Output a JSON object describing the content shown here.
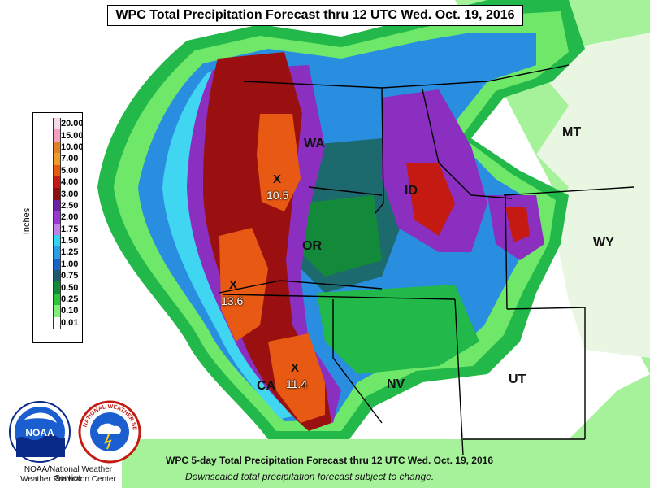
{
  "title": "WPC Total Precipitation Forecast thru 12 UTC Wed. Oct. 19, 2016",
  "states": [
    {
      "id": "wa",
      "label": "WA"
    },
    {
      "id": "or",
      "label": "OR"
    },
    {
      "id": "id",
      "label": "ID"
    },
    {
      "id": "mt",
      "label": "MT"
    },
    {
      "id": "wy",
      "label": "WY"
    },
    {
      "id": "ca",
      "label": "CA"
    },
    {
      "id": "nv",
      "label": "NV"
    },
    {
      "id": "ut",
      "label": "UT"
    }
  ],
  "maxima": [
    {
      "id": "wa-max",
      "marker": "X",
      "value": "10.5"
    },
    {
      "id": "or-max",
      "marker": "X",
      "value": "13.6"
    },
    {
      "id": "ca-max",
      "marker": "X",
      "value": "11.4"
    }
  ],
  "legend": {
    "unit": "Inches",
    "levels": [
      {
        "label": "20.00",
        "color": "#f4d9e6"
      },
      {
        "label": "15.00",
        "color": "#f2a0c0"
      },
      {
        "label": "10.00",
        "color": "#e0802a"
      },
      {
        "label": "7.00",
        "color": "#f09a2a"
      },
      {
        "label": "5.00",
        "color": "#e85a14"
      },
      {
        "label": "4.00",
        "color": "#c41a12"
      },
      {
        "label": "3.00",
        "color": "#8e0f0f"
      },
      {
        "label": "2.50",
        "color": "#6a1fa4"
      },
      {
        "label": "2.00",
        "color": "#9a38d0"
      },
      {
        "label": "1.75",
        "color": "#c27fe6"
      },
      {
        "label": "1.50",
        "color": "#33d4f2"
      },
      {
        "label": "1.25",
        "color": "#2a9ee6"
      },
      {
        "label": "1.00",
        "color": "#1a62c8"
      },
      {
        "label": "0.75",
        "color": "#1c5a6e"
      },
      {
        "label": "0.50",
        "color": "#138a3a"
      },
      {
        "label": "0.25",
        "color": "#2ec43a"
      },
      {
        "label": "0.10",
        "color": "#7ef07a"
      },
      {
        "label": "0.01",
        "color": "#ffffff"
      }
    ]
  },
  "footer": {
    "line1": "WPC 5-day Total Precipitation Forecast thru 12 UTC Wed. Oct. 19, 2016",
    "line2": "Downscaled total precipitation forecast subject to change.",
    "agency1": "NOAA/National Weather Service",
    "agency2": "Weather Prediction Center",
    "noaa_logo_text": "NOAA",
    "nws_logo_text": "NATIONAL WEATHER SERVICE"
  },
  "colors": {
    "ocean": "#ffffff",
    "outer_green": "#22b84a",
    "bright_green": "#6fe86a",
    "land_green": "#9af08e",
    "teal": "#1c5a6e",
    "blue": "#2a8ee0",
    "cyan": "#40d6f2",
    "purple": "#8a2fc0",
    "red": "#9a1010",
    "orange": "#e85a14",
    "border": "#000000"
  }
}
